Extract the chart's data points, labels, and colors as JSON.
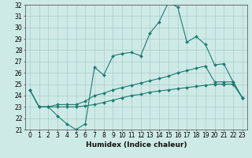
{
  "xlabel": "Humidex (Indice chaleur)",
  "background_color": "#ceeae7",
  "grid_color": "#a8ccc9",
  "line_color": "#1e7b70",
  "xlim": [
    -0.5,
    23.5
  ],
  "ylim": [
    21,
    32
  ],
  "yticks": [
    21,
    22,
    23,
    24,
    25,
    26,
    27,
    28,
    29,
    30,
    31,
    32
  ],
  "xticks": [
    0,
    1,
    2,
    3,
    4,
    5,
    6,
    7,
    8,
    9,
    10,
    11,
    12,
    13,
    14,
    15,
    16,
    17,
    18,
    19,
    20,
    21,
    22,
    23
  ],
  "line1_y": [
    24.5,
    23.0,
    23.0,
    22.2,
    21.5,
    21.0,
    21.5,
    26.5,
    25.8,
    27.5,
    27.7,
    27.8,
    27.5,
    29.5,
    30.5,
    32.2,
    31.8,
    28.7,
    29.2,
    28.5,
    26.7,
    26.8,
    25.2,
    23.8
  ],
  "line2_y": [
    24.5,
    23.0,
    23.0,
    23.2,
    23.2,
    23.2,
    23.5,
    24.0,
    24.2,
    24.5,
    24.7,
    24.9,
    25.1,
    25.3,
    25.5,
    25.7,
    26.0,
    26.2,
    26.4,
    26.6,
    25.2,
    25.2,
    25.2,
    23.8
  ],
  "line3_y": [
    24.5,
    23.0,
    23.0,
    23.0,
    23.0,
    23.0,
    23.1,
    23.2,
    23.4,
    23.6,
    23.8,
    24.0,
    24.1,
    24.3,
    24.4,
    24.5,
    24.6,
    24.7,
    24.8,
    24.9,
    25.0,
    25.0,
    25.0,
    23.8
  ],
  "tick_fontsize": 5.5,
  "xlabel_fontsize": 6.5
}
